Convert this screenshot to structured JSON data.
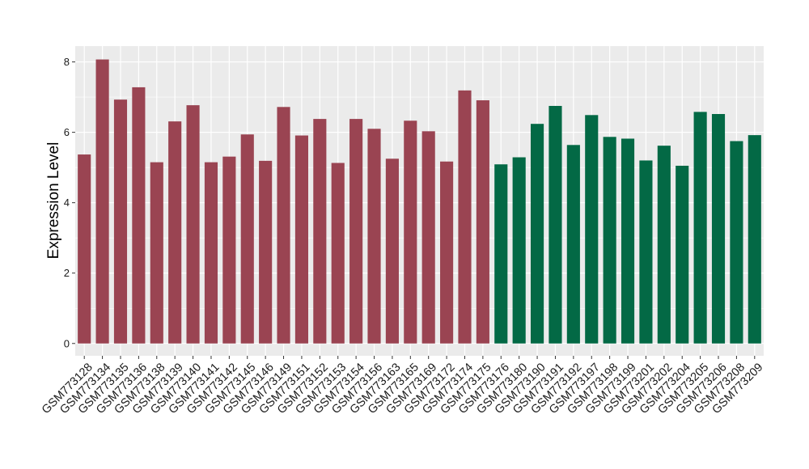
{
  "colors": {
    "panel_background": "#EBEBEB",
    "grid_line": "#FFFFFF",
    "group_1_bar": "#9A4452",
    "group_2_bar": "#036945",
    "tick_mark": "#333333"
  },
  "chart_data": {
    "type": "bar",
    "title": "",
    "xlabel": "",
    "ylabel": "Expression Level",
    "ylim": [
      -0.35,
      8.45
    ],
    "yticks": [
      0,
      2,
      4,
      6,
      8
    ],
    "grid": true,
    "legend": "none",
    "categories": [
      "GSM773128",
      "GSM773134",
      "GSM773135",
      "GSM773136",
      "GSM773138",
      "GSM773139",
      "GSM773140",
      "GSM773141",
      "GSM773142",
      "GSM773145",
      "GSM773146",
      "GSM773149",
      "GSM773151",
      "GSM773152",
      "GSM773153",
      "GSM773154",
      "GSM773156",
      "GSM773163",
      "GSM773165",
      "GSM773169",
      "GSM773172",
      "GSM773174",
      "GSM773175",
      "GSM773176",
      "GSM773180",
      "GSM773190",
      "GSM773191",
      "GSM773192",
      "GSM773197",
      "GSM773198",
      "GSM773199",
      "GSM773201",
      "GSM773202",
      "GSM773204",
      "GSM773205",
      "GSM773206",
      "GSM773208",
      "GSM773209"
    ],
    "values": [
      5.37,
      8.07,
      6.93,
      7.28,
      5.15,
      6.31,
      6.77,
      5.15,
      5.31,
      5.94,
      5.19,
      6.72,
      5.91,
      6.38,
      5.13,
      6.38,
      6.1,
      5.25,
      6.33,
      6.03,
      5.17,
      7.19,
      6.91,
      5.09,
      5.29,
      6.24,
      6.75,
      5.64,
      6.49,
      5.87,
      5.82,
      5.2,
      5.62,
      5.05,
      6.58,
      6.52,
      5.75,
      5.92
    ],
    "groups": [
      1,
      1,
      1,
      1,
      1,
      1,
      1,
      1,
      1,
      1,
      1,
      1,
      1,
      1,
      1,
      1,
      1,
      1,
      1,
      1,
      1,
      1,
      1,
      2,
      2,
      2,
      2,
      2,
      2,
      2,
      2,
      2,
      2,
      2,
      2,
      2,
      2,
      2
    ]
  }
}
